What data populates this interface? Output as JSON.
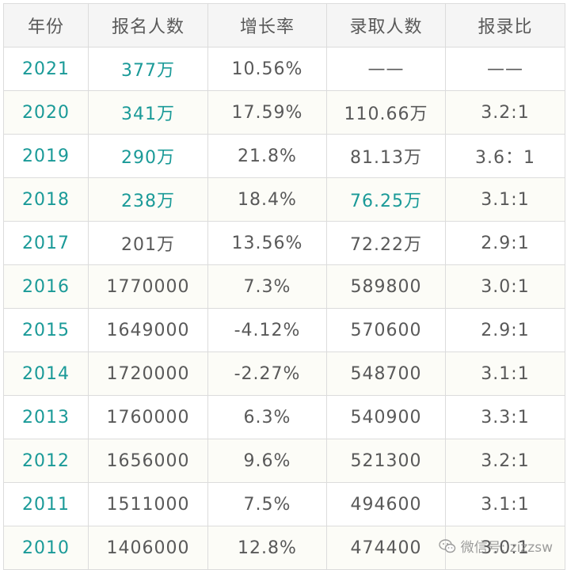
{
  "table": {
    "headers": [
      "年份",
      "报名人数",
      "增长率",
      "录取人数",
      "报录比"
    ],
    "rows": [
      {
        "year": "2021",
        "applicants": "377万",
        "growth": "10.56%",
        "admitted": "——",
        "ratio": "——"
      },
      {
        "year": "2020",
        "applicants": "341万",
        "growth": "17.59%",
        "admitted": "110.66万",
        "ratio": "3.2:1"
      },
      {
        "year": "2019",
        "applicants": "290万",
        "growth": "21.8%",
        "admitted": "81.13万",
        "ratio": "3.6：1"
      },
      {
        "year": "2018",
        "applicants": "238万",
        "growth": "18.4%",
        "admitted": "76.25万",
        "ratio": "3.1:1"
      },
      {
        "year": "2017",
        "applicants": "201万",
        "growth": "13.56%",
        "admitted": "72.22万",
        "ratio": "2.9:1"
      },
      {
        "year": "2016",
        "applicants": "1770000",
        "growth": "7.3%",
        "admitted": "589800",
        "ratio": "3.0:1"
      },
      {
        "year": "2015",
        "applicants": "1649000",
        "growth": "-4.12%",
        "admitted": "570600",
        "ratio": "2.9:1"
      },
      {
        "year": "2014",
        "applicants": "1720000",
        "growth": "-2.27%",
        "admitted": "548700",
        "ratio": "3.1:1"
      },
      {
        "year": "2013",
        "applicants": "1760000",
        "growth": "6.3%",
        "admitted": "540900",
        "ratio": "3.3:1"
      },
      {
        "year": "2012",
        "applicants": "1656000",
        "growth": "9.6%",
        "admitted": "521300",
        "ratio": "3.2:1"
      },
      {
        "year": "2011",
        "applicants": "1511000",
        "growth": "7.5%",
        "admitted": "494600",
        "ratio": "3.1:1"
      },
      {
        "year": "2010",
        "applicants": "1406000",
        "growth": "12.8%",
        "admitted": "474400",
        "ratio": "3.0:1"
      }
    ]
  },
  "watermark": {
    "text": "微信号: zizzsw",
    "icon": "wechat-icon"
  },
  "colors": {
    "accent_teal": "#1a9a98",
    "text_gray": "#595959",
    "header_bg": "#f5f5f5",
    "border": "#dcdcdc"
  }
}
